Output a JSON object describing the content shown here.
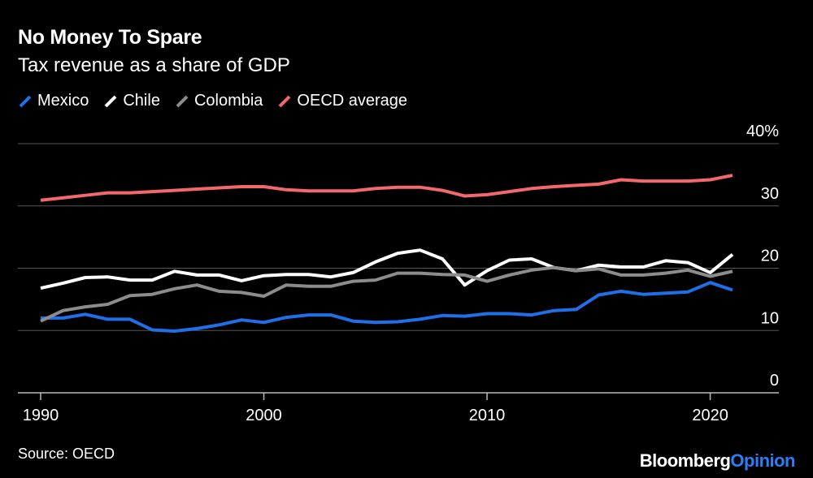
{
  "title": "No Money To Spare",
  "subtitle": "Tax revenue as a share of GDP",
  "source": "Source: OECD",
  "brand": {
    "part1": "Bloomberg",
    "part2": "Opinion"
  },
  "colors": {
    "background": "#000000",
    "grid": "#555555",
    "mexico": "#1f6fe8",
    "chile": "#ffffff",
    "colombia": "#8c8c8c",
    "oecd": "#f2686b",
    "brand_accent": "#2d7df6"
  },
  "chart_data": {
    "type": "line",
    "title": "No Money To Spare",
    "subtitle": "Tax revenue as a share of GDP",
    "xlabel": "",
    "ylabel": "",
    "xlim": [
      1990,
      2023
    ],
    "ylim": [
      0,
      40
    ],
    "y_ticks": [
      0,
      10,
      20,
      30,
      40
    ],
    "y_tick_labels": [
      "0",
      "10",
      "20",
      "30",
      "40%"
    ],
    "x_ticks": [
      1990,
      2000,
      2010,
      2020
    ],
    "x_tick_labels": [
      "1990",
      "2000",
      "2010",
      "2020"
    ],
    "grid": true,
    "legend_position": "top-left",
    "x": [
      1990,
      1991,
      1992,
      1993,
      1994,
      1995,
      1996,
      1997,
      1998,
      1999,
      2000,
      2001,
      2002,
      2003,
      2004,
      2005,
      2006,
      2007,
      2008,
      2009,
      2010,
      2011,
      2012,
      2013,
      2014,
      2015,
      2016,
      2017,
      2018,
      2019,
      2020,
      2021
    ],
    "series": [
      {
        "name": "Mexico",
        "key": "mexico",
        "values": [
          12.0,
          12.0,
          12.6,
          11.8,
          11.8,
          10.1,
          9.9,
          10.3,
          10.9,
          11.7,
          11.3,
          12.1,
          12.5,
          12.5,
          11.5,
          11.3,
          11.4,
          11.8,
          12.4,
          12.3,
          12.7,
          12.7,
          12.5,
          13.2,
          13.4,
          15.7,
          16.3,
          15.8,
          16.0,
          16.2,
          17.7,
          16.5
        ]
      },
      {
        "name": "Chile",
        "key": "chile",
        "values": [
          16.8,
          17.6,
          18.5,
          18.6,
          18.1,
          18.1,
          19.5,
          18.9,
          18.9,
          18.0,
          18.8,
          19.0,
          19.0,
          18.6,
          19.3,
          21.0,
          22.4,
          22.9,
          21.5,
          17.3,
          19.6,
          21.3,
          21.5,
          20.1,
          19.6,
          20.5,
          20.2,
          20.2,
          21.2,
          20.9,
          19.3,
          22.2
        ]
      },
      {
        "name": "Colombia",
        "key": "colombia",
        "values": [
          11.5,
          13.2,
          13.8,
          14.2,
          15.6,
          15.8,
          16.7,
          17.3,
          16.3,
          16.1,
          15.5,
          17.3,
          17.1,
          17.1,
          17.9,
          18.1,
          19.2,
          19.2,
          19.0,
          18.9,
          17.9,
          18.9,
          19.7,
          20.1,
          19.6,
          19.9,
          18.9,
          18.9,
          19.2,
          19.7,
          18.7,
          19.5
        ]
      },
      {
        "name": "OECD average",
        "key": "oecd",
        "values": [
          30.9,
          31.3,
          31.7,
          32.1,
          32.1,
          32.3,
          32.5,
          32.7,
          32.9,
          33.1,
          33.1,
          32.6,
          32.4,
          32.4,
          32.4,
          32.8,
          33.0,
          33.0,
          32.5,
          31.6,
          31.8,
          32.3,
          32.8,
          33.1,
          33.3,
          33.5,
          34.2,
          34.0,
          34.0,
          34.0,
          34.2,
          34.9
        ]
      }
    ]
  }
}
